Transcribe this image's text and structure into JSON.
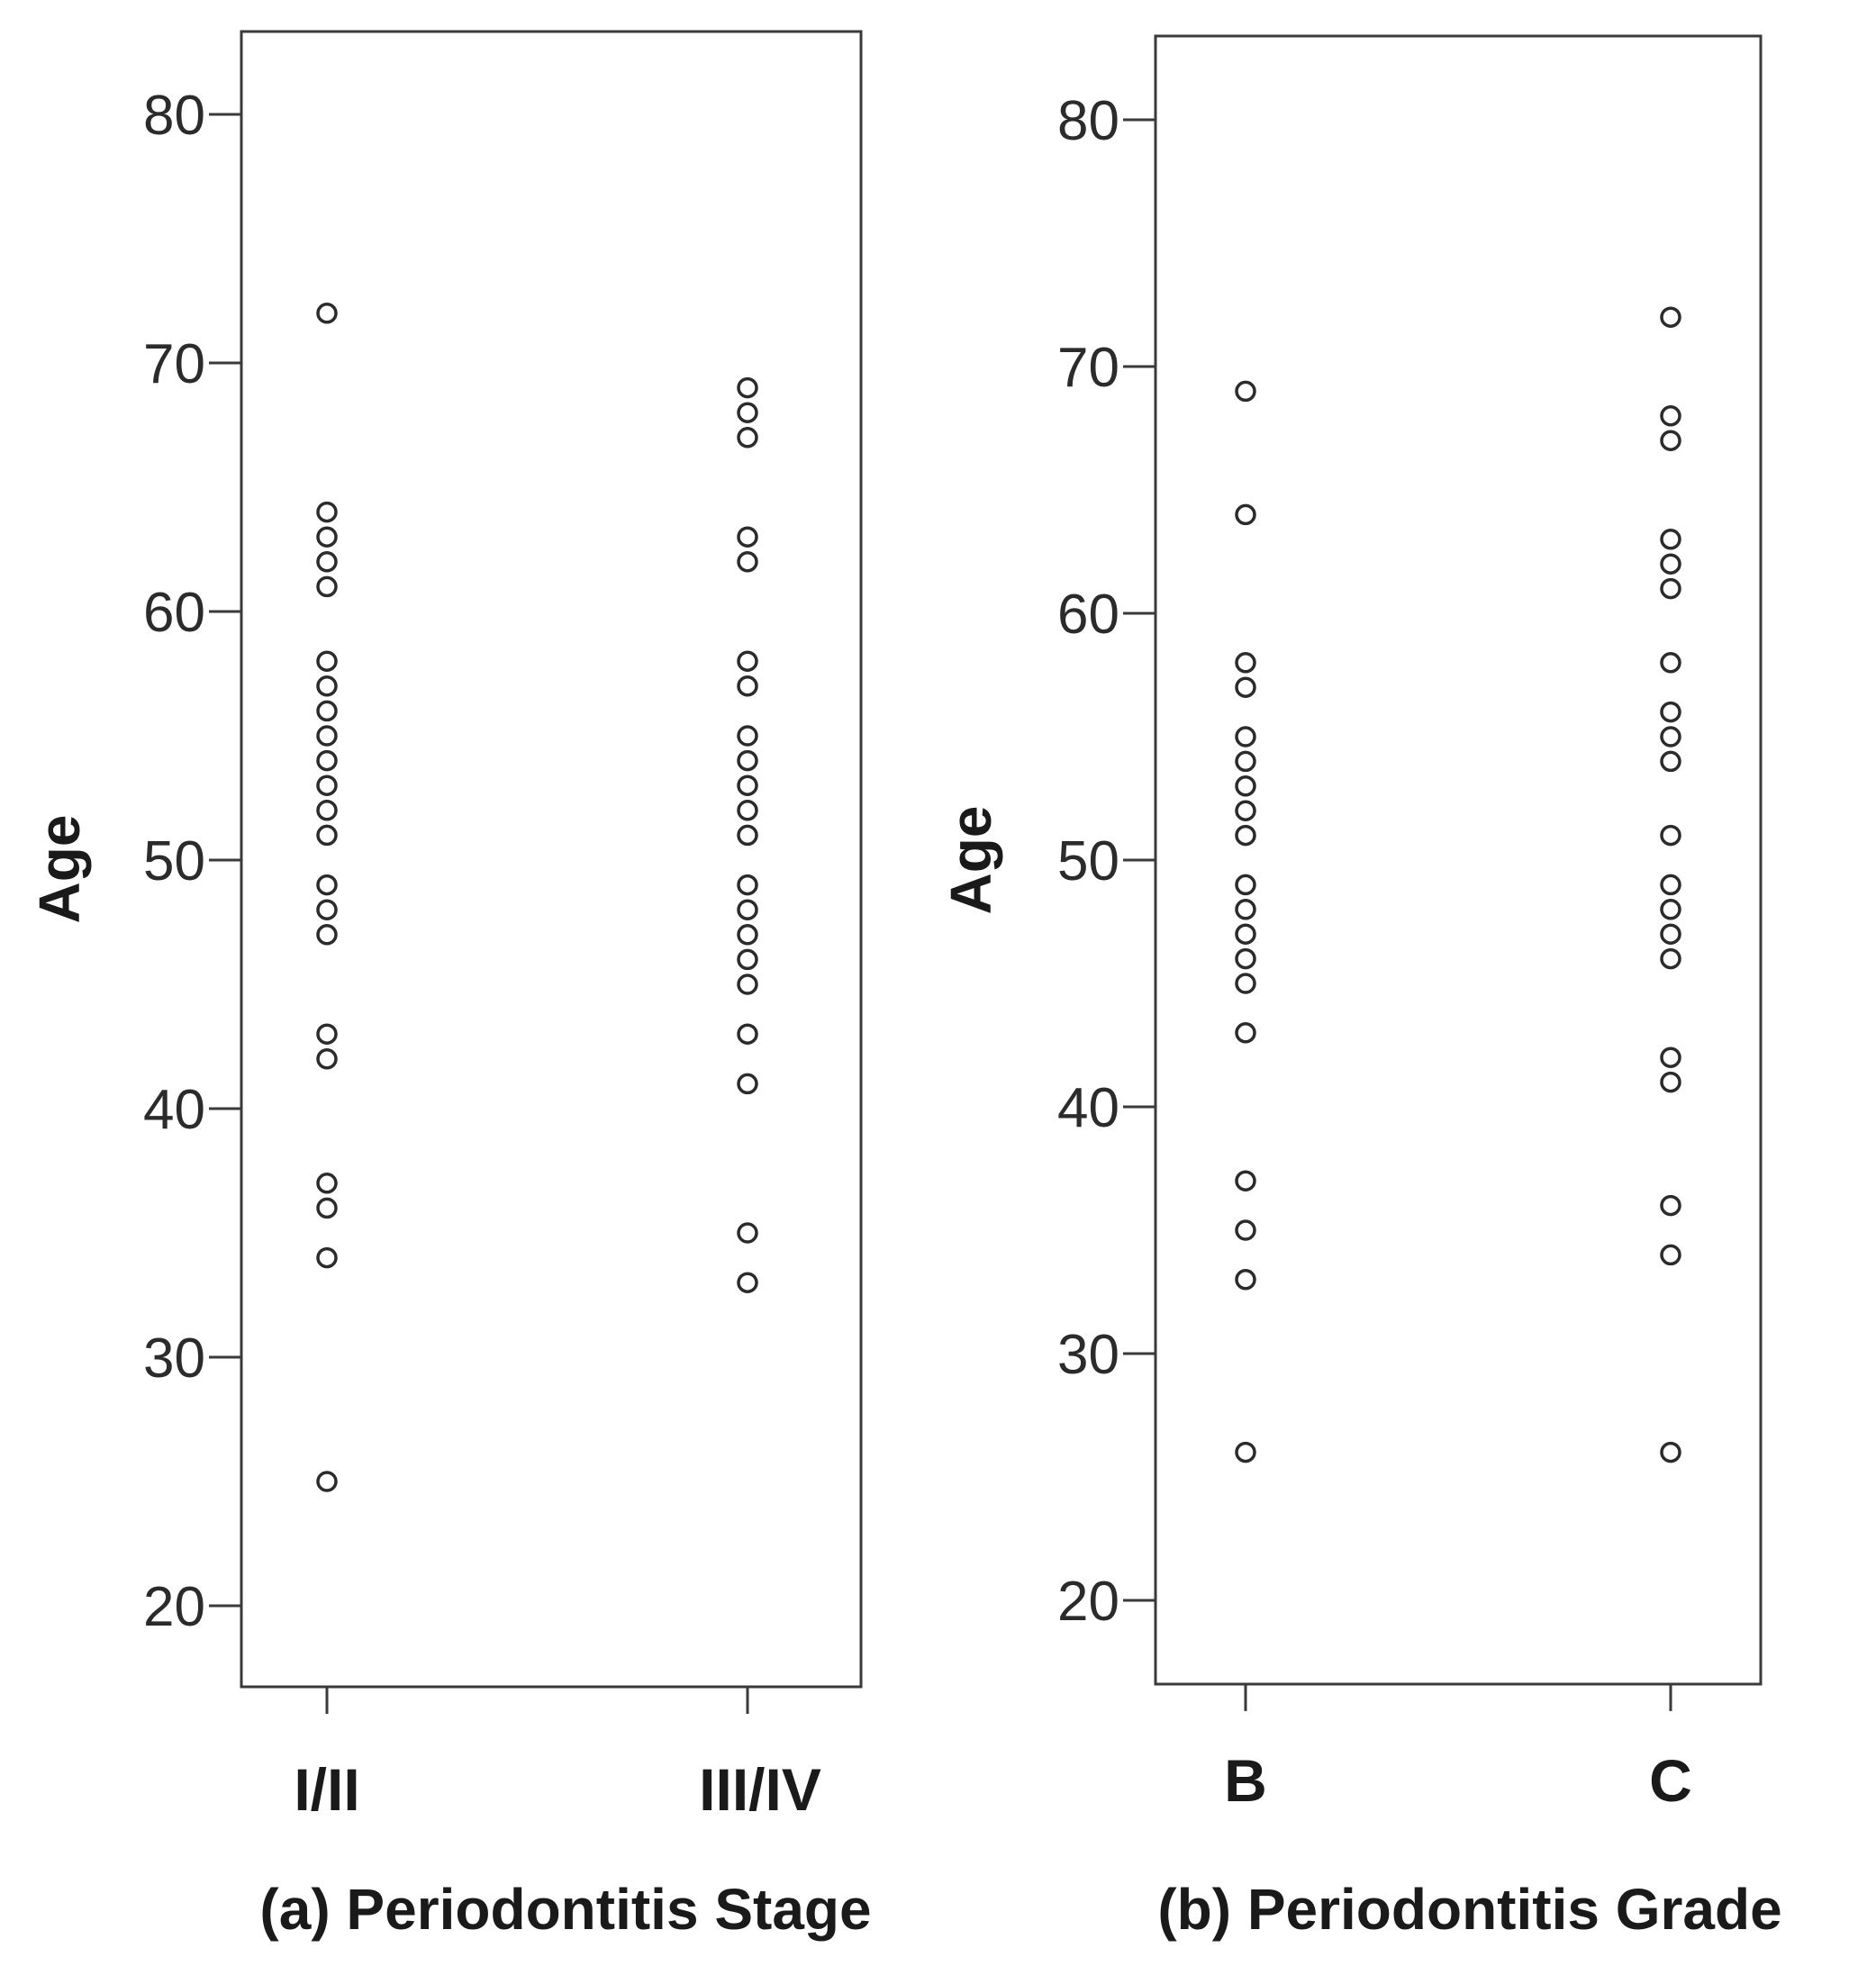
{
  "chart_data": [
    {
      "type": "scatter",
      "title": "(a) Periodontitis Stage",
      "xlabel": "(a) Periodontitis Stage",
      "ylabel": "Age",
      "categories": [
        "I/II",
        "III/IV"
      ],
      "yticks": [
        "20",
        "30",
        "40",
        "50",
        "60",
        "70",
        "80"
      ],
      "ylim": [
        17,
        83
      ],
      "series": [
        {
          "name": "I/II",
          "values": [
            72,
            64,
            63,
            62,
            61,
            58,
            57,
            56,
            55,
            54,
            53,
            52,
            51,
            49,
            48,
            47,
            43,
            42,
            37,
            36,
            34,
            25
          ]
        },
        {
          "name": "III/IV",
          "values": [
            69,
            68,
            67,
            63,
            62,
            58,
            57,
            55,
            54,
            53,
            52,
            51,
            49,
            48,
            47,
            46,
            45,
            43,
            41,
            35,
            33
          ]
        }
      ]
    },
    {
      "type": "scatter",
      "title": "(b) Periodontitis Grade",
      "xlabel": "(b) Periodontitis Grade",
      "ylabel": "Age",
      "categories": [
        "B",
        "C"
      ],
      "yticks": [
        "20",
        "30",
        "40",
        "50",
        "60",
        "70",
        "80"
      ],
      "ylim": [
        17,
        83
      ],
      "series": [
        {
          "name": "B",
          "values": [
            69,
            64,
            58,
            57,
            55,
            54,
            53,
            52,
            51,
            49,
            48,
            47,
            46,
            45,
            43,
            37,
            35,
            33,
            26
          ]
        },
        {
          "name": "C",
          "values": [
            72,
            68,
            67,
            63,
            62,
            61,
            58,
            56,
            55,
            54,
            51,
            49,
            48,
            47,
            46,
            42,
            41,
            36,
            34,
            26
          ]
        }
      ]
    }
  ]
}
